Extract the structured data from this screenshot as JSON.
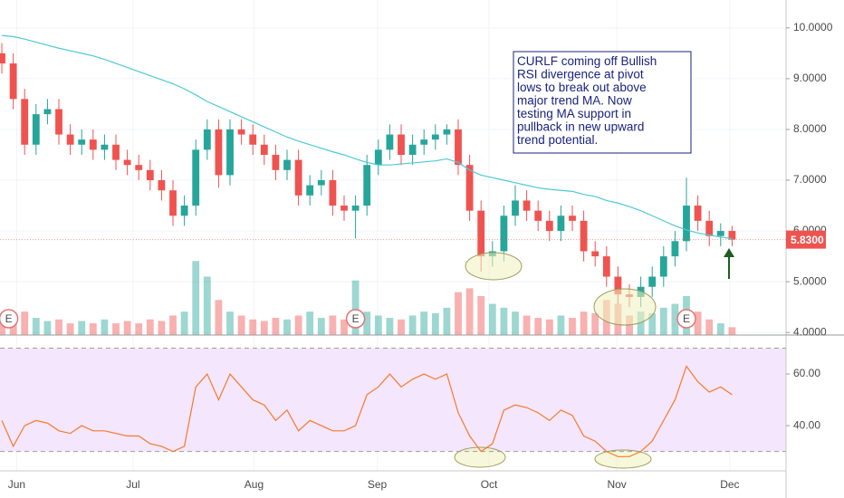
{
  "chart_data": {
    "type": "candlestick",
    "x": [
      0,
      1,
      2,
      3,
      4,
      5,
      6,
      7,
      8,
      9,
      10,
      11,
      12,
      13,
      14,
      15,
      16,
      17,
      18,
      19,
      20,
      21,
      22,
      23,
      24,
      25,
      26,
      27,
      28,
      29,
      30,
      31,
      32,
      33,
      34,
      35,
      36,
      37,
      38,
      39,
      40,
      41,
      42,
      43,
      44,
      45,
      46,
      47,
      48,
      49,
      50,
      51,
      52,
      53,
      54,
      55,
      56,
      57,
      58,
      59,
      60,
      61,
      62,
      63,
      64
    ],
    "open": [
      9.5,
      9.3,
      8.6,
      7.7,
      8.3,
      8.4,
      7.9,
      7.7,
      7.8,
      7.6,
      7.7,
      7.4,
      7.3,
      7.2,
      7.0,
      6.8,
      6.3,
      6.5,
      7.6,
      8.0,
      7.1,
      8.0,
      7.9,
      7.7,
      7.5,
      7.2,
      7.4,
      6.7,
      6.9,
      7.0,
      6.5,
      6.4,
      6.5,
      7.3,
      7.6,
      7.9,
      7.5,
      7.7,
      7.8,
      7.9,
      8.0,
      7.3,
      6.4,
      5.5,
      5.6,
      6.3,
      6.6,
      6.4,
      6.2,
      6.0,
      6.3,
      6.2,
      5.6,
      5.5,
      5.1,
      4.75,
      4.7,
      4.9,
      5.1,
      5.5,
      5.8,
      6.5,
      6.2,
      5.9,
      6.0
    ],
    "high": [
      9.7,
      9.5,
      8.8,
      8.5,
      8.6,
      8.6,
      8.1,
      8.0,
      8.0,
      7.9,
      7.9,
      7.6,
      7.5,
      7.4,
      7.2,
      7.0,
      6.7,
      7.8,
      8.2,
      8.2,
      8.2,
      8.2,
      8.1,
      7.9,
      7.7,
      7.6,
      7.6,
      7.1,
      7.2,
      7.2,
      6.7,
      6.7,
      7.5,
      7.8,
      8.1,
      8.1,
      7.9,
      8.0,
      8.1,
      8.1,
      8.2,
      7.5,
      6.6,
      5.8,
      6.5,
      6.9,
      6.8,
      6.6,
      6.4,
      6.5,
      6.5,
      6.4,
      5.8,
      5.7,
      5.3,
      4.95,
      5.1,
      5.3,
      5.7,
      6.0,
      7.05,
      6.7,
      6.4,
      6.15,
      6.1
    ],
    "low": [
      9.1,
      8.4,
      7.5,
      7.5,
      8.1,
      7.7,
      7.5,
      7.5,
      7.4,
      7.4,
      7.2,
      7.1,
      7.0,
      6.8,
      6.6,
      6.1,
      6.1,
      6.3,
      7.4,
      6.85,
      6.9,
      7.7,
      7.5,
      7.3,
      7.0,
      7.0,
      6.5,
      6.5,
      6.7,
      6.3,
      6.2,
      5.85,
      6.3,
      7.1,
      7.4,
      7.3,
      7.3,
      7.5,
      7.6,
      7.7,
      7.1,
      6.2,
      5.2,
      5.3,
      5.4,
      6.1,
      6.2,
      6.0,
      5.8,
      5.8,
      6.0,
      5.4,
      5.3,
      4.9,
      4.55,
      4.5,
      4.5,
      4.7,
      4.9,
      5.3,
      5.6,
      6.0,
      5.7,
      5.7,
      5.7
    ],
    "close": [
      9.3,
      8.6,
      7.7,
      8.3,
      8.4,
      7.9,
      7.7,
      7.8,
      7.6,
      7.7,
      7.4,
      7.3,
      7.2,
      7.0,
      6.8,
      6.3,
      6.5,
      7.6,
      8.0,
      7.1,
      8.0,
      7.9,
      7.7,
      7.5,
      7.2,
      7.4,
      6.7,
      6.9,
      7.0,
      6.5,
      6.4,
      6.5,
      7.3,
      7.6,
      7.9,
      7.5,
      7.7,
      7.8,
      7.9,
      8.0,
      7.3,
      6.4,
      5.5,
      5.6,
      6.3,
      6.6,
      6.4,
      6.2,
      6.0,
      6.3,
      6.2,
      5.6,
      5.5,
      5.1,
      4.75,
      4.7,
      4.9,
      5.1,
      5.5,
      5.8,
      6.5,
      6.2,
      5.9,
      6.0,
      5.83
    ],
    "up_color": "#26a69a",
    "down_color": "#ef5350",
    "xlim": [
      -0.16,
      68.73
    ],
    "xticks": [
      {
        "value": 1.3,
        "label": "Jun"
      },
      {
        "value": 11.5,
        "label": "Jul"
      },
      {
        "value": 22.1,
        "label": "Aug"
      },
      {
        "value": 32.9,
        "label": "Sep"
      },
      {
        "value": 42.7,
        "label": "Oct"
      },
      {
        "value": 53.9,
        "label": "Nov"
      },
      {
        "value": 63.8,
        "label": "Dec"
      }
    ],
    "ylim": [
      3.95,
      10.55
    ],
    "yticks": [
      {
        "value": 4,
        "label": "4.0000"
      },
      {
        "value": 5,
        "label": "5.0000"
      },
      {
        "value": 6,
        "label": "6.0000"
      },
      {
        "value": 7,
        "label": "7.0000"
      },
      {
        "value": 8,
        "label": "8.0000"
      },
      {
        "value": 9,
        "label": "9.0000"
      },
      {
        "value": 10,
        "label": "10.0000"
      }
    ],
    "grid": true,
    "moving_average": {
      "color": "#4dc9d6",
      "values": [
        9.85,
        9.83,
        9.78,
        9.72,
        9.66,
        9.6,
        9.55,
        9.5,
        9.45,
        9.38,
        9.3,
        9.22,
        9.14,
        9.06,
        8.98,
        8.9,
        8.8,
        8.68,
        8.55,
        8.45,
        8.35,
        8.25,
        8.15,
        8.05,
        7.95,
        7.85,
        7.77,
        7.7,
        7.63,
        7.56,
        7.5,
        7.42,
        7.35,
        7.3,
        7.3,
        7.32,
        7.34,
        7.36,
        7.38,
        7.42,
        7.35,
        7.2,
        7.1,
        7.05,
        7.0,
        6.95,
        6.9,
        6.85,
        6.82,
        6.8,
        6.78,
        6.72,
        6.68,
        6.6,
        6.55,
        6.48,
        6.4,
        6.3,
        6.2,
        6.1,
        6.02,
        5.96,
        5.92,
        5.88,
        5.85
      ]
    },
    "volume": {
      "ylim": [
        0,
        430
      ],
      "values": [
        25,
        20,
        30,
        22,
        18,
        20,
        15,
        18,
        15,
        20,
        15,
        18,
        15,
        20,
        18,
        25,
        30,
        95,
        75,
        45,
        30,
        25,
        20,
        18,
        22,
        20,
        25,
        30,
        22,
        25,
        20,
        70,
        30,
        25,
        22,
        20,
        25,
        30,
        28,
        35,
        55,
        60,
        50,
        40,
        35,
        30,
        25,
        22,
        20,
        25,
        22,
        30,
        28,
        45,
        40,
        25,
        30,
        28,
        35,
        40,
        50,
        30,
        20,
        15,
        10
      ]
    },
    "last_price": {
      "value": 5.83,
      "label": "5.8300"
    },
    "events": [
      {
        "x": 0.6,
        "label": "E"
      },
      {
        "x": 31,
        "label": "E"
      },
      {
        "x": 60,
        "label": "E"
      }
    ],
    "rsi": {
      "color": "#f57c2a",
      "band_color": "#f3e6fd",
      "ylim": [
        22.5,
        74.4
      ],
      "bands": [
        30,
        70
      ],
      "yticks": [
        {
          "value": 40,
          "label": "40.00"
        },
        {
          "value": 60,
          "label": "60.00"
        }
      ],
      "values": [
        42,
        32,
        40,
        42,
        41,
        38,
        37,
        40,
        38,
        38,
        37,
        36,
        36,
        33,
        32,
        30,
        32,
        55,
        60,
        50,
        60,
        55,
        50,
        48,
        42,
        46,
        38,
        42,
        40,
        38,
        38,
        40,
        52,
        55,
        60,
        55,
        58,
        60,
        58,
        60,
        45,
        36,
        30,
        33,
        46,
        48,
        47,
        45,
        42,
        46,
        44,
        36,
        34,
        30,
        28,
        28,
        30,
        34,
        42,
        50,
        63,
        57,
        53,
        55,
        52
      ]
    },
    "annotation": {
      "lines": [
        "CURLF coming off Bullish",
        "RSI divergence at pivot",
        "lows to break out above",
        "major trend MA. Now",
        "testing MA support in",
        "pullback in new upward",
        "trend potential."
      ]
    }
  }
}
